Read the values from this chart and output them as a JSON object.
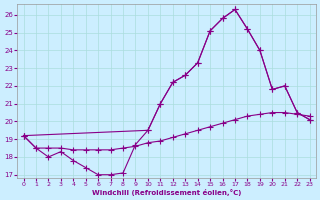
{
  "xlabel": "Windchill (Refroidissement éolien,°C)",
  "bg_color": "#cceeff",
  "line_color": "#880088",
  "grid_color": "#aadddd",
  "xlim": [
    -0.5,
    23.5
  ],
  "ylim": [
    16.8,
    26.6
  ],
  "yticks": [
    17,
    18,
    19,
    20,
    21,
    22,
    23,
    24,
    25,
    26
  ],
  "xticks": [
    0,
    1,
    2,
    3,
    4,
    5,
    6,
    7,
    8,
    9,
    10,
    11,
    12,
    13,
    14,
    15,
    16,
    17,
    18,
    19,
    20,
    21,
    22,
    23
  ],
  "line1_x": [
    0,
    1,
    2,
    3,
    4,
    5,
    6,
    7,
    8,
    9,
    10,
    11,
    12,
    13,
    14,
    15,
    16,
    17,
    18,
    19,
    20,
    21,
    22,
    23
  ],
  "line1_y": [
    19.2,
    18.5,
    18.0,
    18.3,
    17.8,
    17.4,
    17.0,
    17.0,
    17.1,
    18.7,
    19.5,
    21.0,
    22.2,
    22.6,
    23.3,
    25.1,
    25.8,
    26.3,
    25.2,
    24.0,
    21.8,
    22.0,
    20.5,
    20.1
  ],
  "line2_x": [
    0,
    1,
    2,
    3,
    4,
    5,
    6,
    7,
    8,
    9,
    10,
    11,
    12,
    13,
    14,
    15,
    16,
    17,
    18,
    19,
    20,
    21,
    22,
    23
  ],
  "line2_y": [
    19.2,
    18.5,
    18.5,
    18.5,
    18.4,
    18.4,
    18.4,
    18.4,
    18.5,
    18.6,
    18.8,
    18.9,
    19.1,
    19.3,
    19.5,
    19.7,
    19.9,
    20.1,
    20.3,
    20.4,
    20.5,
    20.5,
    20.4,
    20.3
  ],
  "line3_x": [
    0,
    10,
    11,
    12,
    13,
    14,
    15,
    16,
    17,
    18,
    19,
    20,
    21,
    22,
    23
  ],
  "line3_y": [
    19.2,
    19.5,
    21.0,
    22.2,
    22.6,
    23.3,
    25.1,
    25.8,
    26.3,
    25.2,
    24.0,
    21.8,
    22.0,
    20.5,
    20.1
  ],
  "markersize": 2.0
}
